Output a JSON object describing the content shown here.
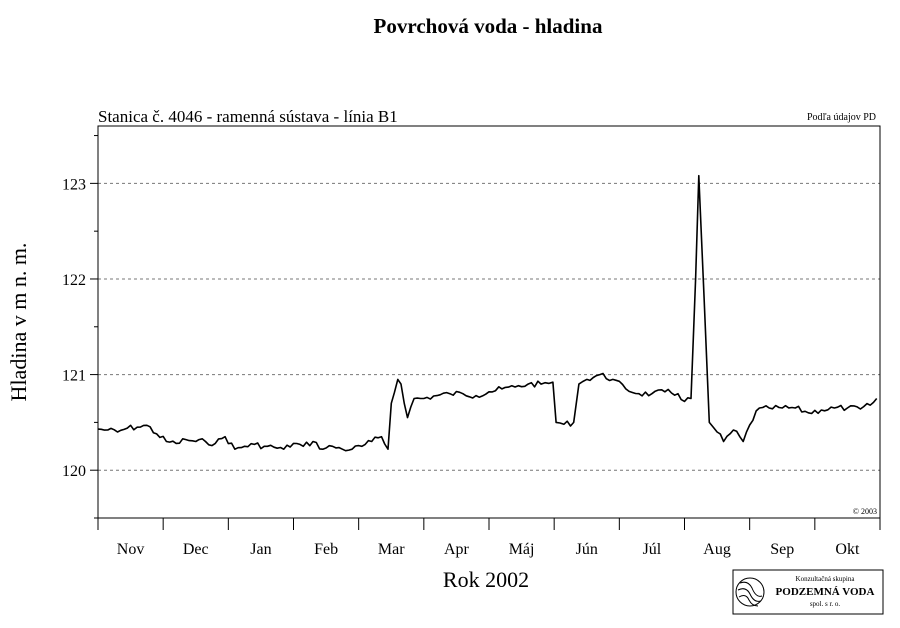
{
  "chart_data": {
    "type": "line",
    "title": "Povrchová voda - hladina",
    "subtitle": "Stanica č. 4046 - ramenná sústava - línia B1",
    "source_note": "Podľa údajov PD",
    "copyright": "© 2003",
    "xlabel": "Rok 2002",
    "ylabel": "Hladina v m n. m.",
    "ylim": [
      119.5,
      123.6
    ],
    "yticks": [
      120,
      121,
      122,
      123
    ],
    "grid": "horizontal-dashed",
    "categories": [
      "Nov",
      "Dec",
      "Jan",
      "Feb",
      "Mar",
      "Apr",
      "Máj",
      "Jún",
      "Júl",
      "Aug",
      "Sep",
      "Okt"
    ],
    "series": [
      {
        "x": [
          0,
          0.15,
          0.3,
          0.45,
          0.6,
          0.75,
          0.9,
          1.05,
          1.2,
          1.35,
          1.5,
          1.65,
          1.8,
          1.95,
          2.1,
          2.25,
          2.4,
          2.55,
          2.7,
          2.85,
          3.0,
          3.15,
          3.3,
          3.45,
          3.6,
          3.75,
          3.9,
          4.05,
          4.2,
          4.35,
          4.45,
          4.5,
          4.6,
          4.65,
          4.75,
          4.85,
          5.0,
          5.2,
          5.4,
          5.6,
          5.8,
          6.0,
          6.2,
          6.4,
          6.6,
          6.8,
          6.98,
          7.03,
          7.15,
          7.3,
          7.38,
          7.5,
          7.7,
          7.9,
          8.1,
          8.3,
          8.5,
          8.7,
          8.9,
          9.0,
          9.1,
          9.17,
          9.22,
          9.3,
          9.38,
          9.5,
          9.6,
          9.75,
          9.9,
          10.1,
          10.3,
          10.5,
          10.7,
          10.9,
          11.1,
          11.3,
          11.5,
          11.7,
          11.85,
          11.95
        ],
        "values": [
          120.43,
          120.42,
          120.4,
          120.44,
          120.45,
          120.47,
          120.38,
          120.3,
          120.28,
          120.32,
          120.3,
          120.3,
          120.28,
          120.35,
          120.22,
          120.25,
          120.27,
          120.25,
          120.24,
          120.22,
          120.28,
          120.25,
          120.3,
          120.22,
          120.25,
          120.22,
          120.22,
          120.25,
          120.3,
          120.35,
          120.22,
          120.7,
          120.95,
          120.9,
          120.55,
          120.75,
          120.75,
          120.78,
          120.8,
          120.8,
          120.78,
          120.82,
          120.85,
          120.87,
          120.9,
          120.9,
          120.92,
          120.5,
          120.48,
          120.5,
          120.9,
          120.95,
          121.0,
          120.95,
          120.85,
          120.8,
          120.8,
          120.82,
          120.8,
          120.72,
          120.75,
          122.0,
          123.08,
          121.8,
          120.5,
          120.4,
          120.3,
          120.42,
          120.3,
          120.62,
          120.65,
          120.65,
          120.65,
          120.6,
          120.63,
          120.65,
          120.65,
          120.64,
          120.68,
          120.75
        ]
      }
    ]
  },
  "logo": {
    "line1": "Konzultačná skupina",
    "line2": "PODZEMNÁ VODA",
    "line3": "spol. s r. o."
  }
}
